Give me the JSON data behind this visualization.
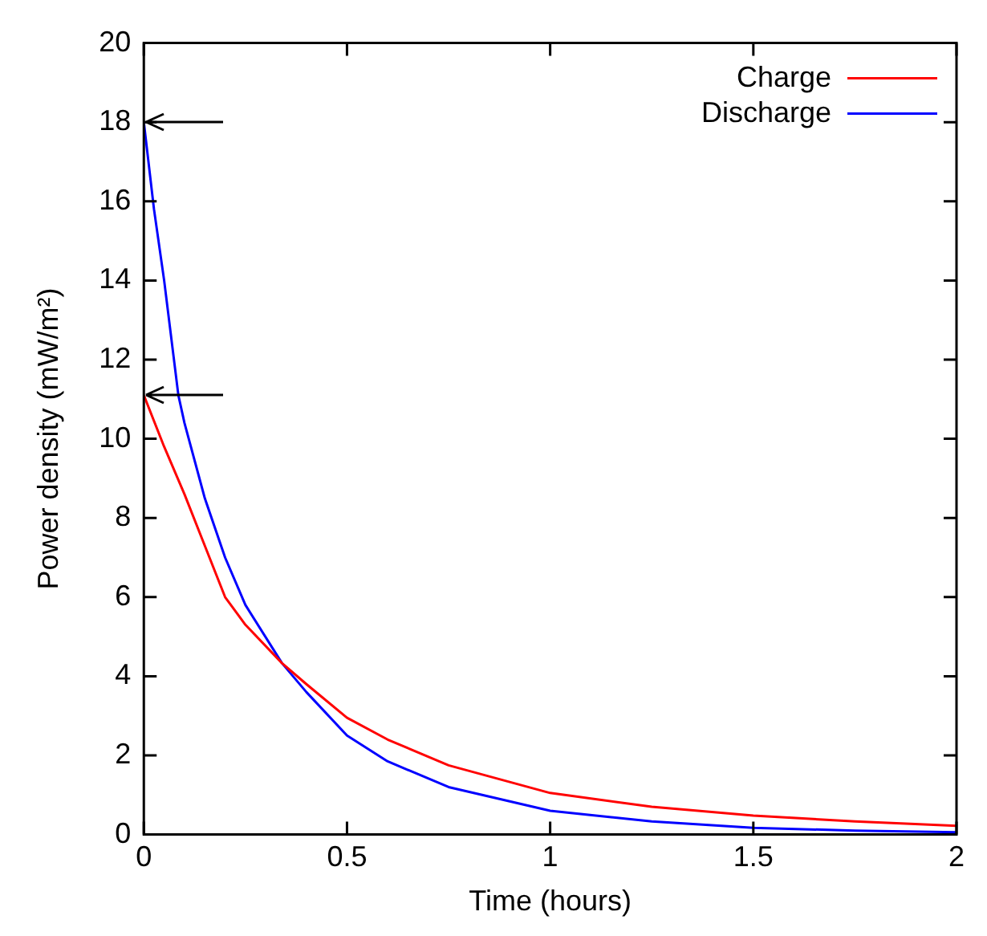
{
  "chart_data": {
    "type": "line",
    "xlabel": "Time (hours)",
    "ylabel": "Power density (mW/m²)",
    "xlim": [
      0,
      2
    ],
    "xticks": [
      0,
      0.5,
      1,
      1.5,
      2
    ],
    "ylim": [
      0,
      20
    ],
    "yticks": [
      0,
      2,
      4,
      6,
      8,
      10,
      12,
      14,
      16,
      18,
      20
    ],
    "legend": "top right",
    "marker": "none",
    "line_style": "solid",
    "series": [
      {
        "name": "Charge",
        "color": "#ff0000",
        "x": [
          0,
          0.05,
          0.1,
          0.15,
          0.2,
          0.25,
          0.34,
          0.4,
          0.5,
          0.6,
          0.75,
          1,
          1.25,
          1.5,
          1.75,
          2
        ],
        "values": [
          11.1,
          9.8,
          8.6,
          7.3,
          6.0,
          5.3,
          4.33,
          3.8,
          2.95,
          2.4,
          1.75,
          1.05,
          0.7,
          0.48,
          0.33,
          0.22
        ]
      },
      {
        "name": "Discharge",
        "color": "#0000ff",
        "x": [
          0,
          0.025,
          0.05,
          0.085,
          0.1,
          0.15,
          0.2,
          0.25,
          0.34,
          0.4,
          0.5,
          0.6,
          0.75,
          1,
          1.25,
          1.5,
          1.75,
          2
        ],
        "values": [
          18,
          15.8,
          14.0,
          11.1,
          10.4,
          8.5,
          7.0,
          5.8,
          4.33,
          3.6,
          2.5,
          1.85,
          1.2,
          0.6,
          0.33,
          0.17,
          0.1,
          0.06
        ]
      }
    ]
  }
}
